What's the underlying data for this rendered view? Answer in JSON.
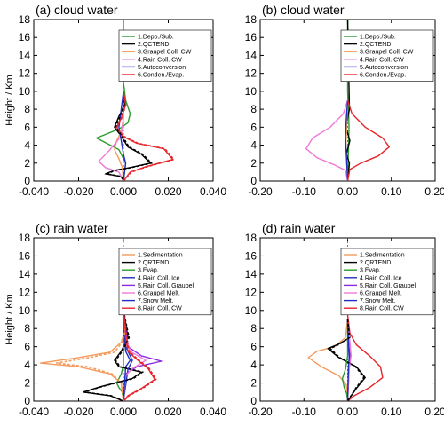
{
  "legend_colors": {
    "green": "#2e9b2e",
    "black": "#000000",
    "orange": "#f39a5c",
    "pink": "#f07ad8",
    "blue": "#1f2fbf",
    "red": "#e8242a",
    "purple": "#8a2be2",
    "darkred": "#c0392b"
  },
  "chart_data": [
    {
      "type": "line",
      "title": "(a) cloud water",
      "ylabel": "Height / Km",
      "xlabel": "",
      "xlim": [
        -0.04,
        0.04
      ],
      "ylim": [
        0,
        18
      ],
      "xticks": [
        "-0.040",
        "-0.020",
        "0.000",
        "0.020",
        "0.040"
      ],
      "xtick_values": [
        -0.04,
        -0.02,
        0.0,
        0.02,
        0.04
      ],
      "yticks": [
        "0",
        "2",
        "4",
        "6",
        "8",
        "10",
        "12",
        "14",
        "16",
        "18"
      ],
      "legend_position": "top-right",
      "series": [
        {
          "name": "1.Depo./Sub.",
          "color": "#2e9b2e",
          "x": [
            0,
            0,
            0.0005,
            0.001,
            0.003,
            0.002,
            -0.002,
            -0.012,
            -0.002,
            0.001,
            0.0005,
            0
          ],
          "y": [
            18,
            11,
            10,
            9,
            7.5,
            6.5,
            5.8,
            4.8,
            3.5,
            2,
            1,
            0
          ]
        },
        {
          "name": "2.QCTEND",
          "color": "#000000",
          "x": [
            0,
            0.0005,
            -0.002,
            -0.004,
            -0.001,
            0.002,
            0.008,
            0.012,
            0.003,
            -0.004,
            -0.008,
            -0.001,
            0
          ],
          "y": [
            10,
            8.5,
            7.2,
            6,
            5,
            3.8,
            3,
            2,
            1.5,
            1.2,
            0.8,
            0.5,
            0
          ]
        },
        {
          "name": "3.Graupel Coll. CW",
          "color": "#f39a5c",
          "x": [
            0,
            0,
            -0.001,
            -0.003,
            -0.004,
            -0.002,
            -0.0005,
            0
          ],
          "y": [
            10,
            7,
            5.5,
            4.5,
            3.5,
            2.5,
            1.5,
            0
          ]
        },
        {
          "name": "4.Rain Coll. CW",
          "color": "#f07ad8",
          "x": [
            0,
            -0.001,
            -0.006,
            -0.011,
            -0.008,
            -0.002,
            0
          ],
          "y": [
            7,
            5,
            3.5,
            2.2,
            1.5,
            1,
            0
          ]
        },
        {
          "name": "5.Autoconversion",
          "color": "#1f2fbf",
          "x": [
            0,
            -0.001,
            -0.002,
            -0.001,
            0,
            0.001,
            0
          ],
          "y": [
            10,
            8,
            6,
            4.5,
            3,
            2,
            0
          ]
        },
        {
          "name": "6.Conden./Evap.",
          "color": "#e8242a",
          "x": [
            0,
            0.001,
            -0.001,
            -0.003,
            -0.0005,
            0.006,
            0.018,
            0.022,
            0.01,
            0.003,
            0
          ],
          "y": [
            10,
            8.5,
            7,
            6,
            5,
            4.2,
            3.6,
            2.4,
            1.6,
            1,
            0
          ]
        }
      ],
      "dashed_series": [
        {
          "color": "#000000",
          "x": [
            0,
            0.0005,
            -0.0015,
            -0.0035,
            -0.0005,
            0.0025,
            0.0085,
            0.0125,
            0.0035,
            -0.0035,
            -0.0075,
            -0.001,
            0
          ],
          "y": [
            10,
            8.5,
            7.2,
            6,
            5,
            3.8,
            3,
            2,
            1.5,
            1.2,
            0.8,
            0.5,
            0
          ]
        },
        {
          "color": "#e8242a",
          "x": [
            0,
            0.001,
            -0.0008,
            -0.0028,
            0,
            0.0065,
            0.0185,
            0.0225,
            0.0105,
            0.0035,
            0
          ],
          "y": [
            10,
            8.5,
            7,
            6,
            5,
            4.2,
            3.6,
            2.4,
            1.6,
            1,
            0
          ]
        }
      ]
    },
    {
      "type": "line",
      "title": "(b) cloud water",
      "ylabel": "",
      "xlabel": "",
      "xlim": [
        -0.2,
        0.2
      ],
      "ylim": [
        0,
        18
      ],
      "xticks": [
        "-0.20",
        "-0.10",
        "0.00",
        "0.10",
        "0.20"
      ],
      "xtick_values": [
        -0.2,
        -0.1,
        0.0,
        0.1,
        0.2
      ],
      "yticks": [
        "0",
        "2",
        "4",
        "6",
        "8",
        "10",
        "12",
        "14",
        "16",
        "18"
      ],
      "legend_position": "top-right",
      "series": [
        {
          "name": "1.Depo./Sub.",
          "color": "#2e9b2e",
          "x": [
            0,
            0,
            0.002,
            0.003,
            0.002,
            0
          ],
          "y": [
            18,
            10,
            8,
            6,
            4,
            0
          ]
        },
        {
          "name": "2.QCTEND",
          "color": "#000000",
          "x": [
            0,
            0.004,
            -0.004,
            0.005,
            -0.003,
            0.004,
            0
          ],
          "y": [
            18,
            8,
            6,
            4.5,
            3,
            2,
            0
          ]
        },
        {
          "name": "3.Graupel Coll. CW",
          "color": "#f39a5c",
          "x": [
            0,
            -0.002,
            -0.004,
            -0.002,
            0
          ],
          "y": [
            9,
            6,
            4,
            2,
            0
          ]
        },
        {
          "name": "4.Rain Coll. CW",
          "color": "#f07ad8",
          "x": [
            0,
            -0.01,
            -0.04,
            -0.08,
            -0.095,
            -0.07,
            -0.03,
            -0.005,
            0
          ],
          "y": [
            9,
            7.5,
            6,
            4.8,
            3.6,
            2.6,
            1.8,
            1.2,
            0
          ]
        },
        {
          "name": "5.Autoconversion",
          "color": "#1f2fbf",
          "x": [
            0,
            -0.003,
            -0.005,
            -0.003,
            0
          ],
          "y": [
            9,
            7,
            5,
            3,
            0
          ]
        },
        {
          "name": "6.Conden./Evap.",
          "color": "#e8242a",
          "x": [
            0,
            0.01,
            0.04,
            0.08,
            0.095,
            0.07,
            0.03,
            0.005,
            0
          ],
          "y": [
            9,
            7.5,
            6,
            4.8,
            3.8,
            2.8,
            2,
            1.3,
            0
          ]
        }
      ],
      "dashed_series": []
    },
    {
      "type": "line",
      "title": "(c) rain water",
      "ylabel": "Height / Km",
      "xlabel": "",
      "xlim": [
        -0.04,
        0.04
      ],
      "ylim": [
        0,
        18
      ],
      "xticks": [
        "-0.040",
        "-0.020",
        "0.000",
        "0.020",
        "0.040"
      ],
      "xtick_values": [
        -0.04,
        -0.02,
        0.0,
        0.02,
        0.04
      ],
      "yticks": [
        "0",
        "2",
        "4",
        "6",
        "8",
        "10",
        "12",
        "14",
        "16",
        "18"
      ],
      "legend_position": "top-right",
      "series": [
        {
          "name": "1.Sedimentation",
          "color": "#f39a5c",
          "x": [
            0,
            0.001,
            -0.001,
            -0.006,
            -0.02,
            -0.037,
            -0.02,
            -0.006,
            -0.001,
            0
          ],
          "y": [
            10,
            8,
            6.5,
            5.4,
            4.8,
            4.2,
            3.8,
            3,
            2,
            0
          ]
        },
        {
          "name": "2.QRTEND",
          "color": "#000000",
          "x": [
            0,
            0.002,
            -0.001,
            -0.004,
            -0.002,
            0.008,
            0.004,
            -0.01,
            -0.018,
            -0.006,
            0
          ],
          "y": [
            10,
            7,
            5.5,
            4.5,
            3.8,
            3.2,
            2.5,
            1.6,
            1,
            0.6,
            0
          ]
        },
        {
          "name": "3.Evap.",
          "color": "#2e9b2e",
          "x": [
            0,
            0,
            -0.001,
            -0.003,
            -0.002,
            -0.0005,
            0
          ],
          "y": [
            10,
            4,
            3,
            2,
            1.5,
            1,
            0
          ]
        },
        {
          "name": "4.Rain Coll. Ice",
          "color": "#1f2fbf",
          "x": [
            0,
            0.001,
            0.004,
            0.002,
            0
          ],
          "y": [
            10,
            6,
            4.5,
            3.5,
            0
          ]
        },
        {
          "name": "5.Rain Coll. Graupel",
          "color": "#8a2be2",
          "x": [
            0,
            0.002,
            0.008,
            0.017,
            0.006,
            0.001,
            0
          ],
          "y": [
            10,
            6,
            5,
            4.4,
            3.8,
            3,
            0
          ]
        },
        {
          "name": "6.Graupel Melt.",
          "color": "#f07ad8",
          "x": [
            0,
            0.003,
            0.01,
            0.004,
            0.001,
            0
          ],
          "y": [
            8,
            5.5,
            4.5,
            3.6,
            2.8,
            0
          ]
        },
        {
          "name": "7.Snow Melt.",
          "color": "#1f2fbf",
          "x": [
            0,
            0.001,
            0.003,
            0.001,
            0
          ],
          "y": [
            8,
            5.5,
            4.5,
            3.8,
            0
          ]
        },
        {
          "name": "8.Rain Coll. CW",
          "color": "#e8242a",
          "x": [
            0,
            0.001,
            0.002,
            0.006,
            0.011,
            0.014,
            0.008,
            0.002,
            0
          ],
          "y": [
            10,
            7,
            5.5,
            4.6,
            3.6,
            2.4,
            1.4,
            0.6,
            0
          ]
        }
      ],
      "dashed_series": [
        {
          "color": "#f39a5c",
          "x": [
            0,
            0.001,
            -0.0005,
            -0.004,
            -0.015,
            -0.03,
            -0.016,
            -0.005,
            -0.001,
            0
          ],
          "y": [
            10,
            8,
            6.5,
            5.4,
            4.8,
            4.2,
            3.8,
            3,
            2,
            0
          ]
        },
        {
          "color": "#000000",
          "x": [
            0,
            0.0025,
            -0.0005,
            -0.0035,
            -0.0015,
            0.0085,
            0.0045,
            -0.0095,
            -0.0175,
            -0.0055,
            0
          ],
          "y": [
            10,
            7,
            5.5,
            4.5,
            3.8,
            3.2,
            2.5,
            1.6,
            1,
            0.6,
            0
          ]
        },
        {
          "color": "#e8242a",
          "x": [
            0,
            0.0015,
            0.0025,
            0.0065,
            0.0115,
            0.0145,
            0.0085,
            0.0025,
            0
          ],
          "y": [
            10,
            7,
            5.5,
            4.6,
            3.6,
            2.4,
            1.4,
            0.6,
            0
          ]
        }
      ]
    },
    {
      "type": "line",
      "title": "(d) rain water",
      "ylabel": "",
      "xlabel": "",
      "xlim": [
        -0.2,
        0.2
      ],
      "ylim": [
        0,
        18
      ],
      "xticks": [
        "-0.20",
        "-0.10",
        "0.00",
        "0.10",
        "0.20"
      ],
      "xtick_values": [
        -0.2,
        -0.1,
        0.0,
        0.1,
        0.2
      ],
      "yticks": [
        "0",
        "2",
        "4",
        "6",
        "8",
        "10",
        "12",
        "14",
        "16",
        "18"
      ],
      "legend_position": "top-right",
      "series": [
        {
          "name": "1.Sedimentation",
          "color": "#f39a5c",
          "x": [
            0,
            -0.005,
            -0.03,
            -0.07,
            -0.09,
            -0.06,
            -0.02,
            -0.003,
            0
          ],
          "y": [
            9,
            7,
            6,
            5.5,
            4.8,
            3.8,
            2.8,
            1.8,
            0
          ]
        },
        {
          "name": "2.QRTEND",
          "color": "#000000",
          "x": [
            0,
            0.005,
            -0.02,
            -0.045,
            -0.02,
            0.02,
            0.04,
            0.02,
            0
          ],
          "y": [
            9,
            7,
            6.3,
            5.8,
            4.8,
            3.8,
            2.6,
            1.4,
            0
          ]
        },
        {
          "name": "3.Evap.",
          "color": "#2e9b2e",
          "x": [
            0,
            0,
            -0.005,
            -0.012,
            -0.008,
            -0.002,
            0
          ],
          "y": [
            9,
            5,
            3.5,
            2.5,
            1.5,
            0.8,
            0
          ]
        },
        {
          "name": "4.Rain Coll. Ice",
          "color": "#1f2fbf",
          "x": [
            0,
            0.002,
            0.004,
            0.002,
            0
          ],
          "y": [
            9,
            6,
            4.5,
            3.5,
            0
          ]
        },
        {
          "name": "5.Rain Coll. Graupel",
          "color": "#8a2be2",
          "x": [
            0,
            0.003,
            0.006,
            0.003,
            0
          ],
          "y": [
            9,
            6,
            4.5,
            3.5,
            0
          ]
        },
        {
          "name": "6.Graupel Melt.",
          "color": "#f07ad8",
          "x": [
            0,
            0.005,
            0.008,
            0.004,
            0
          ],
          "y": [
            9,
            6.5,
            5,
            4,
            0
          ]
        },
        {
          "name": "7.Snow Melt.",
          "color": "#1f2fbf",
          "x": [
            0,
            0.002,
            0.004,
            0.002,
            0
          ],
          "y": [
            9,
            6,
            5,
            4,
            0
          ]
        },
        {
          "name": "8.Rain Coll. CW",
          "color": "#e8242a",
          "x": [
            0,
            0.005,
            0.02,
            0.05,
            0.075,
            0.08,
            0.05,
            0.015,
            0
          ],
          "y": [
            9.5,
            7.5,
            6.2,
            5,
            3.8,
            2.6,
            1.5,
            0.6,
            0
          ]
        }
      ],
      "dashed_series": [
        {
          "color": "#000000",
          "x": [
            0,
            0.004,
            -0.018,
            -0.04,
            -0.018,
            0.018,
            0.037,
            0.018,
            0
          ],
          "y": [
            9,
            7,
            6.3,
            5.8,
            4.8,
            3.8,
            2.6,
            1.4,
            0
          ]
        }
      ]
    }
  ]
}
